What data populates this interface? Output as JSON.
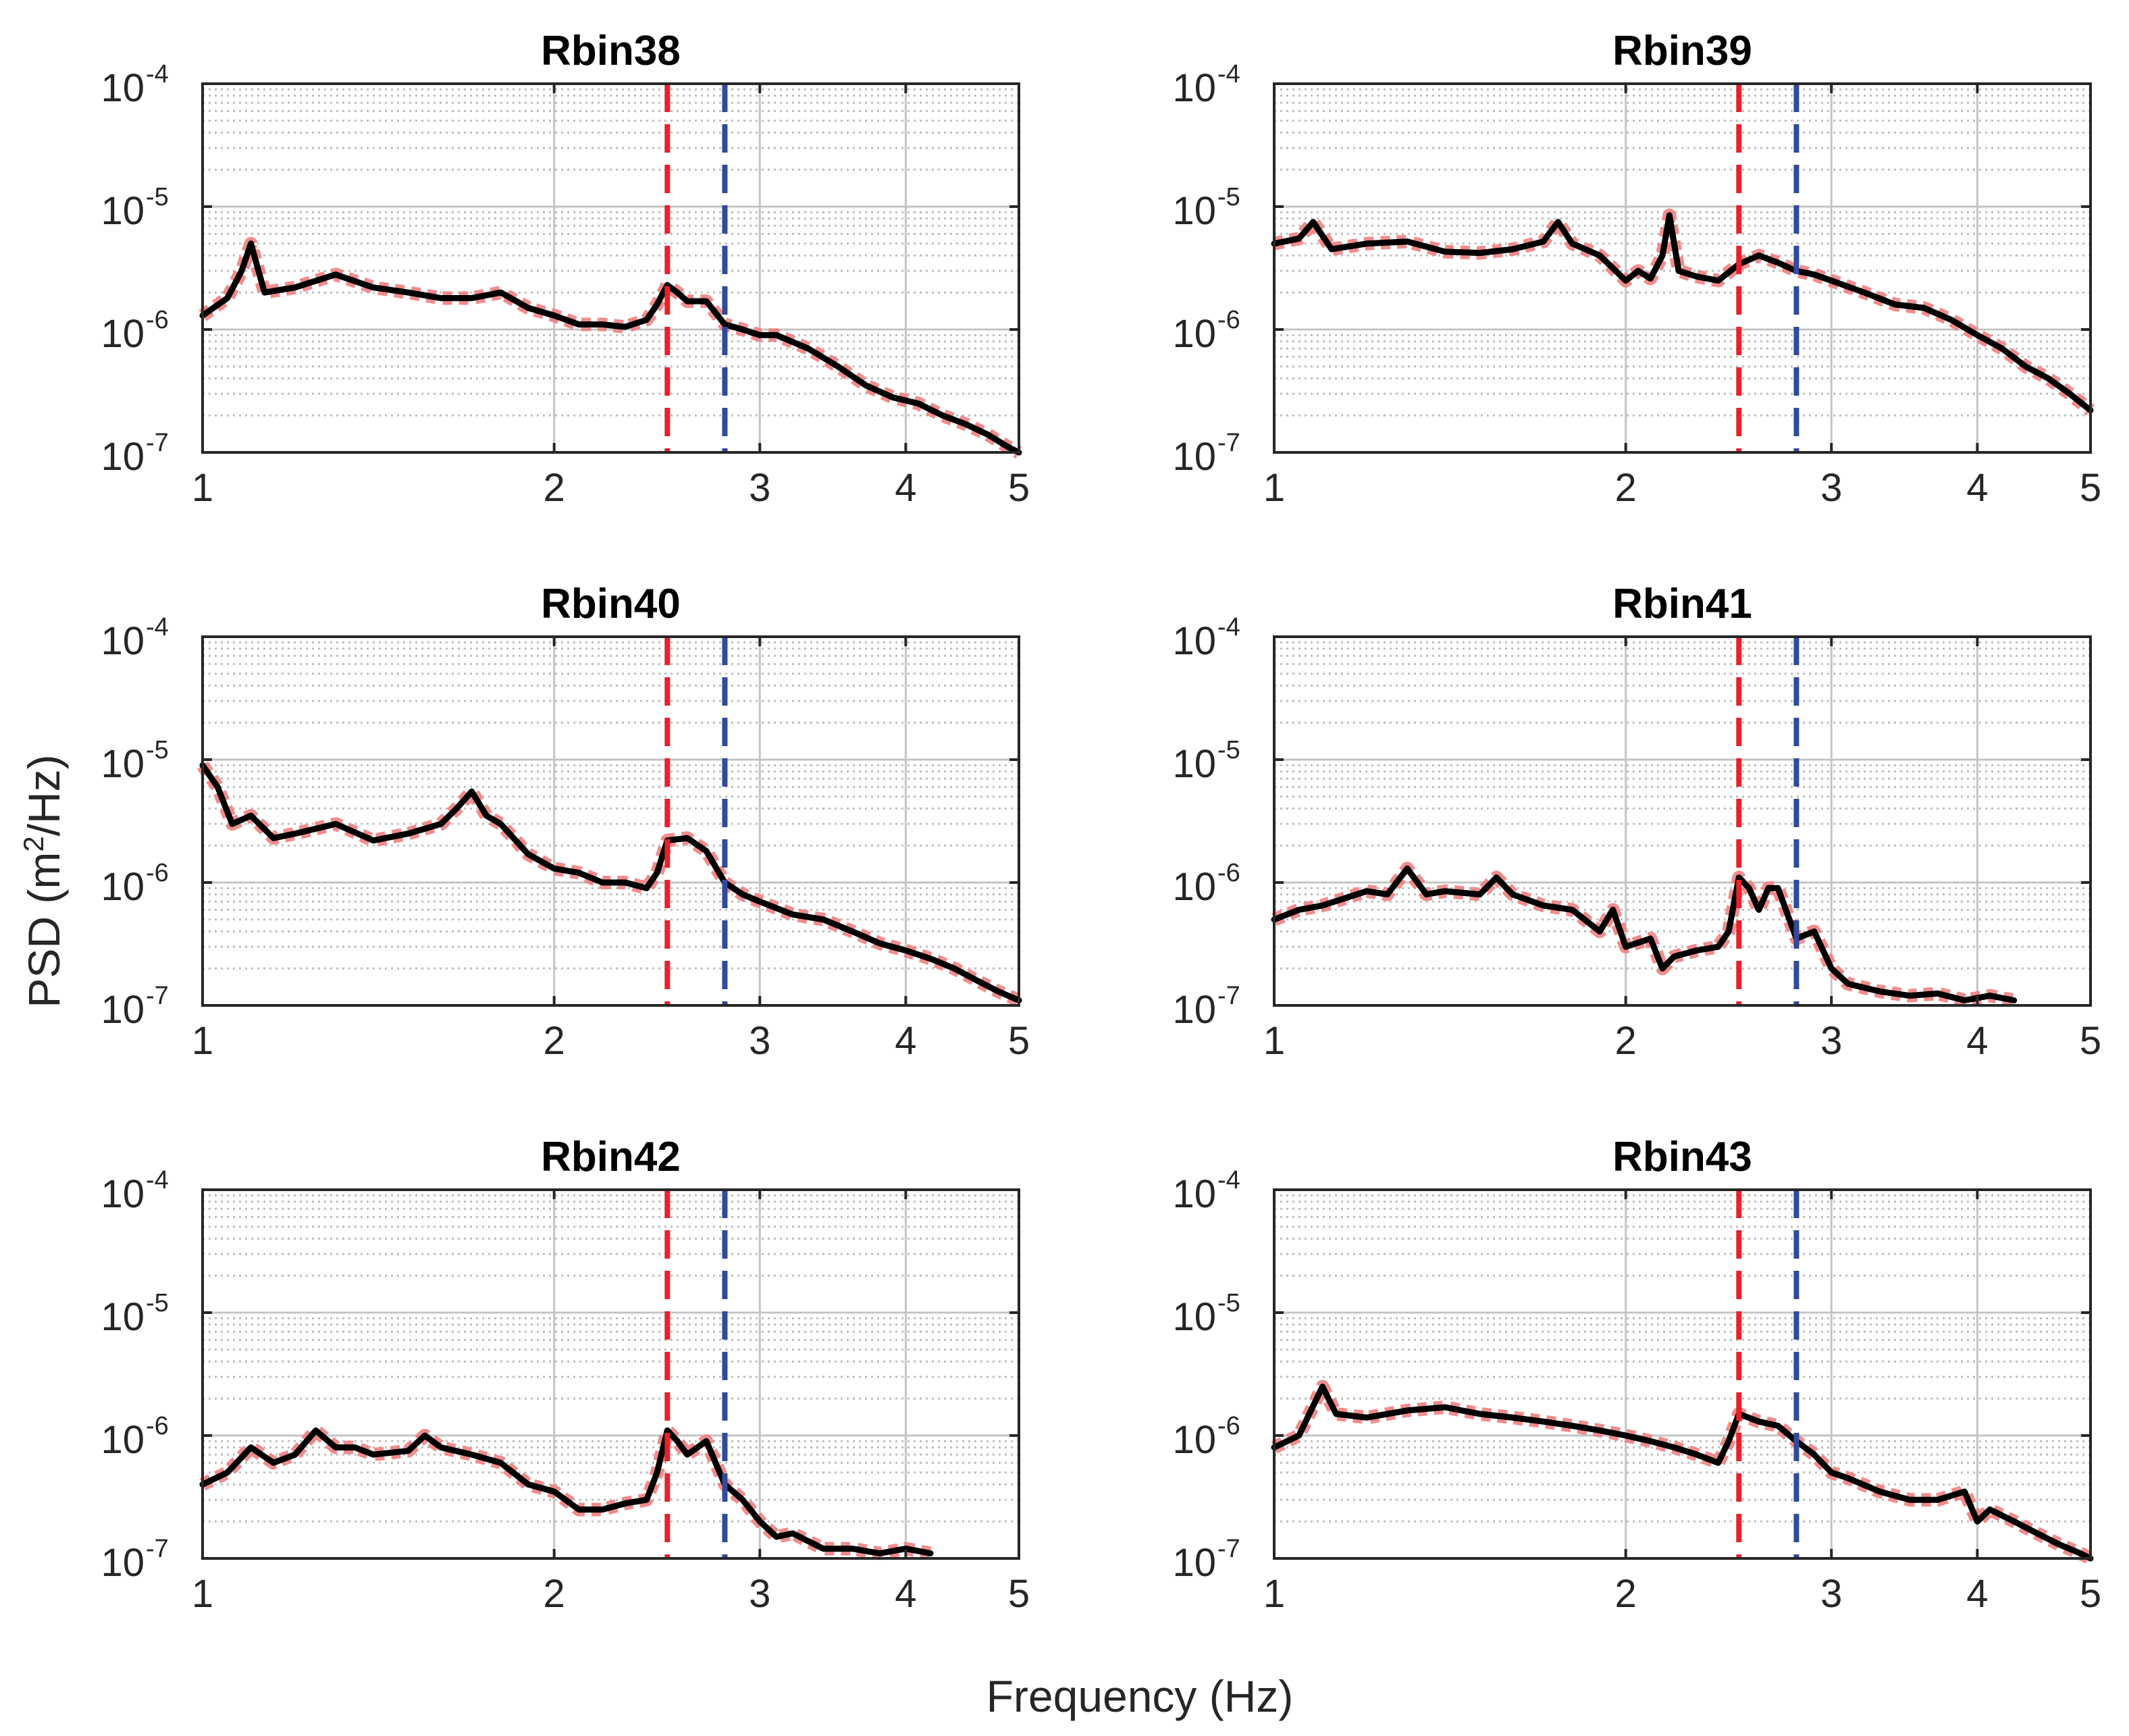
{
  "figure": {
    "ylabel_prefix": "PSD (m",
    "ylabel_sup": "2",
    "ylabel_suffix": "/Hz)",
    "xlabel": "Frequency (Hz)"
  },
  "chart_data": [
    {
      "type": "line",
      "title": "Rbin38",
      "xscale": "log",
      "yscale": "log",
      "xlim": [
        1,
        5
      ],
      "ylim": [
        1e-07,
        0.0001
      ],
      "xticks": [
        1,
        2,
        3,
        4,
        5
      ],
      "yticks": [
        1e-07,
        1e-06,
        1e-05,
        0.0001
      ],
      "xtick_labels": [
        "1",
        "2",
        "3",
        "4",
        "5"
      ],
      "ytick_base": "10",
      "ytick_exponents": [
        "-7",
        "-6",
        "-5",
        "-4"
      ],
      "vlines": [
        {
          "x": 2.5,
          "color": "#e8212a",
          "style": "dashed"
        },
        {
          "x": 2.8,
          "color": "#2e4b9e",
          "style": "dashed"
        }
      ],
      "series": [
        {
          "name": "PSD",
          "color": "#000000",
          "band_color": "#f08080",
          "x": [
            1.0,
            1.05,
            1.08,
            1.1,
            1.13,
            1.2,
            1.3,
            1.4,
            1.5,
            1.6,
            1.7,
            1.8,
            1.9,
            2.0,
            2.1,
            2.2,
            2.3,
            2.4,
            2.45,
            2.5,
            2.55,
            2.6,
            2.7,
            2.8,
            2.9,
            3.0,
            3.1,
            3.3,
            3.5,
            3.7,
            3.9,
            4.1,
            4.3,
            4.5,
            4.7,
            4.9,
            5.0
          ],
          "y": [
            1.3e-06,
            1.8e-06,
            3e-06,
            5e-06,
            2e-06,
            2.2e-06,
            2.8e-06,
            2.2e-06,
            2e-06,
            1.8e-06,
            1.8e-06,
            2e-06,
            1.5e-06,
            1.3e-06,
            1.1e-06,
            1.1e-06,
            1.05e-06,
            1.2e-06,
            1.6e-06,
            2.3e-06,
            2e-06,
            1.7e-06,
            1.7e-06,
            1.1e-06,
            1e-06,
            9e-07,
            9e-07,
            7e-07,
            5e-07,
            3.5e-07,
            2.8e-07,
            2.5e-07,
            2e-07,
            1.7e-07,
            1.4e-07,
            1.1e-07,
            1e-07
          ]
        }
      ]
    },
    {
      "type": "line",
      "title": "Rbin39",
      "xscale": "log",
      "yscale": "log",
      "xlim": [
        1,
        5
      ],
      "ylim": [
        1e-07,
        0.0001
      ],
      "xticks": [
        1,
        2,
        3,
        4,
        5
      ],
      "yticks": [
        1e-07,
        1e-06,
        1e-05,
        0.0001
      ],
      "xtick_labels": [
        "1",
        "2",
        "3",
        "4",
        "5"
      ],
      "ytick_base": "10",
      "ytick_exponents": [
        "-7",
        "-6",
        "-5",
        "-4"
      ],
      "vlines": [
        {
          "x": 2.5,
          "color": "#e8212a",
          "style": "dashed"
        },
        {
          "x": 2.8,
          "color": "#2e4b9e",
          "style": "dashed"
        }
      ],
      "series": [
        {
          "name": "PSD",
          "color": "#000000",
          "band_color": "#f08080",
          "x": [
            1.0,
            1.05,
            1.08,
            1.12,
            1.2,
            1.3,
            1.4,
            1.5,
            1.6,
            1.7,
            1.75,
            1.8,
            1.9,
            2.0,
            2.05,
            2.1,
            2.15,
            2.18,
            2.22,
            2.3,
            2.4,
            2.5,
            2.6,
            2.7,
            2.8,
            2.9,
            3.0,
            3.2,
            3.4,
            3.6,
            3.8,
            4.0,
            4.2,
            4.4,
            4.6,
            4.8,
            5.0
          ],
          "y": [
            5e-06,
            5.5e-06,
            7.5e-06,
            4.5e-06,
            5e-06,
            5.2e-06,
            4.3e-06,
            4.2e-06,
            4.5e-06,
            5.2e-06,
            7.5e-06,
            5e-06,
            4e-06,
            2.5e-06,
            3e-06,
            2.6e-06,
            4e-06,
            8.5e-06,
            3e-06,
            2.7e-06,
            2.5e-06,
            3.4e-06,
            4e-06,
            3.5e-06,
            3e-06,
            2.8e-06,
            2.5e-06,
            2e-06,
            1.6e-06,
            1.5e-06,
            1.2e-06,
            9e-07,
            7e-07,
            5e-07,
            4e-07,
            3e-07,
            2.2e-07
          ]
        }
      ]
    },
    {
      "type": "line",
      "title": "Rbin40",
      "xscale": "log",
      "yscale": "log",
      "xlim": [
        1,
        5
      ],
      "ylim": [
        1e-07,
        0.0001
      ],
      "xticks": [
        1,
        2,
        3,
        4,
        5
      ],
      "yticks": [
        1e-07,
        1e-06,
        1e-05,
        0.0001
      ],
      "xtick_labels": [
        "1",
        "2",
        "3",
        "4",
        "5"
      ],
      "ytick_base": "10",
      "ytick_exponents": [
        "-7",
        "-6",
        "-5",
        "-4"
      ],
      "vlines": [
        {
          "x": 2.5,
          "color": "#e8212a",
          "style": "dashed"
        },
        {
          "x": 2.8,
          "color": "#2e4b9e",
          "style": "dashed"
        }
      ],
      "series": [
        {
          "name": "PSD",
          "color": "#000000",
          "band_color": "#f08080",
          "x": [
            1.0,
            1.03,
            1.06,
            1.1,
            1.15,
            1.2,
            1.3,
            1.4,
            1.5,
            1.6,
            1.65,
            1.7,
            1.75,
            1.8,
            1.9,
            2.0,
            2.1,
            2.2,
            2.3,
            2.4,
            2.45,
            2.5,
            2.6,
            2.7,
            2.8,
            2.9,
            3.0,
            3.2,
            3.4,
            3.6,
            3.8,
            4.0,
            4.2,
            4.4,
            4.6,
            4.8,
            5.0
          ],
          "y": [
            9e-06,
            6e-06,
            3e-06,
            3.5e-06,
            2.3e-06,
            2.5e-06,
            3e-06,
            2.2e-06,
            2.5e-06,
            3e-06,
            4e-06,
            5.5e-06,
            3.5e-06,
            3e-06,
            1.7e-06,
            1.3e-06,
            1.2e-06,
            1e-06,
            1e-06,
            9e-07,
            1.2e-06,
            2.2e-06,
            2.3e-06,
            1.8e-06,
            1e-06,
            8e-07,
            7e-07,
            5.5e-07,
            5e-07,
            4e-07,
            3.2e-07,
            2.8e-07,
            2.4e-07,
            2e-07,
            1.6e-07,
            1.3e-07,
            1.1e-07
          ]
        }
      ]
    },
    {
      "type": "line",
      "title": "Rbin41",
      "xscale": "log",
      "yscale": "log",
      "xlim": [
        1,
        5
      ],
      "ylim": [
        1e-07,
        0.0001
      ],
      "xticks": [
        1,
        2,
        3,
        4,
        5
      ],
      "yticks": [
        1e-07,
        1e-06,
        1e-05,
        0.0001
      ],
      "xtick_labels": [
        "1",
        "2",
        "3",
        "4",
        "5"
      ],
      "ytick_base": "10",
      "ytick_exponents": [
        "-7",
        "-6",
        "-5",
        "-4"
      ],
      "vlines": [
        {
          "x": 2.5,
          "color": "#e8212a",
          "style": "dashed"
        },
        {
          "x": 2.8,
          "color": "#2e4b9e",
          "style": "dashed"
        }
      ],
      "series": [
        {
          "name": "PSD",
          "color": "#000000",
          "band_color": "#f08080",
          "x": [
            1.0,
            1.05,
            1.1,
            1.2,
            1.25,
            1.3,
            1.35,
            1.4,
            1.5,
            1.55,
            1.6,
            1.7,
            1.8,
            1.9,
            1.95,
            2.0,
            2.1,
            2.15,
            2.2,
            2.3,
            2.4,
            2.45,
            2.5,
            2.55,
            2.6,
            2.65,
            2.7,
            2.8,
            2.9,
            3.0,
            3.1,
            3.3,
            3.5,
            3.7,
            3.9,
            4.1,
            4.3
          ],
          "y": [
            5e-07,
            6e-07,
            6.5e-07,
            8.5e-07,
            8e-07,
            1.3e-06,
            8e-07,
            8.5e-07,
            8e-07,
            1.1e-06,
            8e-07,
            6.5e-07,
            6e-07,
            4e-07,
            6e-07,
            3e-07,
            3.5e-07,
            2e-07,
            2.5e-07,
            2.8e-07,
            3e-07,
            4e-07,
            1.1e-06,
            9e-07,
            6e-07,
            9e-07,
            9e-07,
            3.5e-07,
            4e-07,
            2e-07,
            1.5e-07,
            1.3e-07,
            1.2e-07,
            1.25e-07,
            1.1e-07,
            1.2e-07,
            1.1e-07
          ]
        }
      ]
    },
    {
      "type": "line",
      "title": "Rbin42",
      "xscale": "log",
      "yscale": "log",
      "xlim": [
        1,
        5
      ],
      "ylim": [
        1e-07,
        0.0001
      ],
      "xticks": [
        1,
        2,
        3,
        4,
        5
      ],
      "yticks": [
        1e-07,
        1e-06,
        1e-05,
        0.0001
      ],
      "xtick_labels": [
        "1",
        "2",
        "3",
        "4",
        "5"
      ],
      "ytick_base": "10",
      "ytick_exponents": [
        "-7",
        "-6",
        "-5",
        "-4"
      ],
      "vlines": [
        {
          "x": 2.5,
          "color": "#e8212a",
          "style": "dashed"
        },
        {
          "x": 2.8,
          "color": "#2e4b9e",
          "style": "dashed"
        }
      ],
      "series": [
        {
          "name": "PSD",
          "color": "#000000",
          "band_color": "#f08080",
          "x": [
            1.0,
            1.05,
            1.1,
            1.15,
            1.2,
            1.25,
            1.3,
            1.35,
            1.4,
            1.5,
            1.55,
            1.6,
            1.7,
            1.8,
            1.9,
            2.0,
            2.1,
            2.2,
            2.3,
            2.4,
            2.45,
            2.5,
            2.55,
            2.6,
            2.7,
            2.8,
            2.9,
            3.0,
            3.1,
            3.2,
            3.4,
            3.6,
            3.8,
            4.0,
            4.2
          ],
          "y": [
            4e-07,
            5e-07,
            8e-07,
            6e-07,
            7e-07,
            1.1e-06,
            8e-07,
            8e-07,
            7e-07,
            7.5e-07,
            1e-06,
            8e-07,
            7e-07,
            6e-07,
            4e-07,
            3.5e-07,
            2.5e-07,
            2.5e-07,
            2.8e-07,
            3e-07,
            5e-07,
            1.1e-06,
            9e-07,
            7e-07,
            9e-07,
            4e-07,
            3e-07,
            2e-07,
            1.5e-07,
            1.6e-07,
            1.2e-07,
            1.2e-07,
            1.1e-07,
            1.2e-07,
            1.1e-07
          ]
        }
      ]
    },
    {
      "type": "line",
      "title": "Rbin43",
      "xscale": "log",
      "yscale": "log",
      "xlim": [
        1,
        5
      ],
      "ylim": [
        1e-07,
        0.0001
      ],
      "xticks": [
        1,
        2,
        3,
        4,
        5
      ],
      "yticks": [
        1e-07,
        1e-06,
        1e-05,
        0.0001
      ],
      "xtick_labels": [
        "1",
        "2",
        "3",
        "4",
        "5"
      ],
      "ytick_base": "10",
      "ytick_exponents": [
        "-7",
        "-6",
        "-5",
        "-4"
      ],
      "vlines": [
        {
          "x": 2.5,
          "color": "#e8212a",
          "style": "dashed"
        },
        {
          "x": 2.8,
          "color": "#2e4b9e",
          "style": "dashed"
        }
      ],
      "series": [
        {
          "name": "PSD",
          "color": "#000000",
          "band_color": "#f08080",
          "x": [
            1.0,
            1.05,
            1.1,
            1.13,
            1.2,
            1.3,
            1.4,
            1.5,
            1.6,
            1.7,
            1.8,
            1.9,
            2.0,
            2.1,
            2.2,
            2.3,
            2.4,
            2.45,
            2.5,
            2.6,
            2.7,
            2.8,
            2.9,
            3.0,
            3.1,
            3.3,
            3.5,
            3.7,
            3.9,
            4.0,
            4.1,
            4.3,
            4.5,
            4.7,
            4.9,
            5.0
          ],
          "y": [
            8e-07,
            1e-06,
            2.5e-06,
            1.5e-06,
            1.4e-06,
            1.6e-06,
            1.7e-06,
            1.5e-06,
            1.4e-06,
            1.3e-06,
            1.2e-06,
            1.1e-06,
            1e-06,
            9e-07,
            8e-07,
            7e-07,
            6e-07,
            9e-07,
            1.5e-06,
            1.3e-06,
            1.2e-06,
            9e-07,
            7e-07,
            5e-07,
            4.5e-07,
            3.5e-07,
            3e-07,
            3e-07,
            3.5e-07,
            2e-07,
            2.5e-07,
            2e-07,
            1.6e-07,
            1.3e-07,
            1.1e-07,
            1e-07
          ]
        }
      ]
    }
  ]
}
